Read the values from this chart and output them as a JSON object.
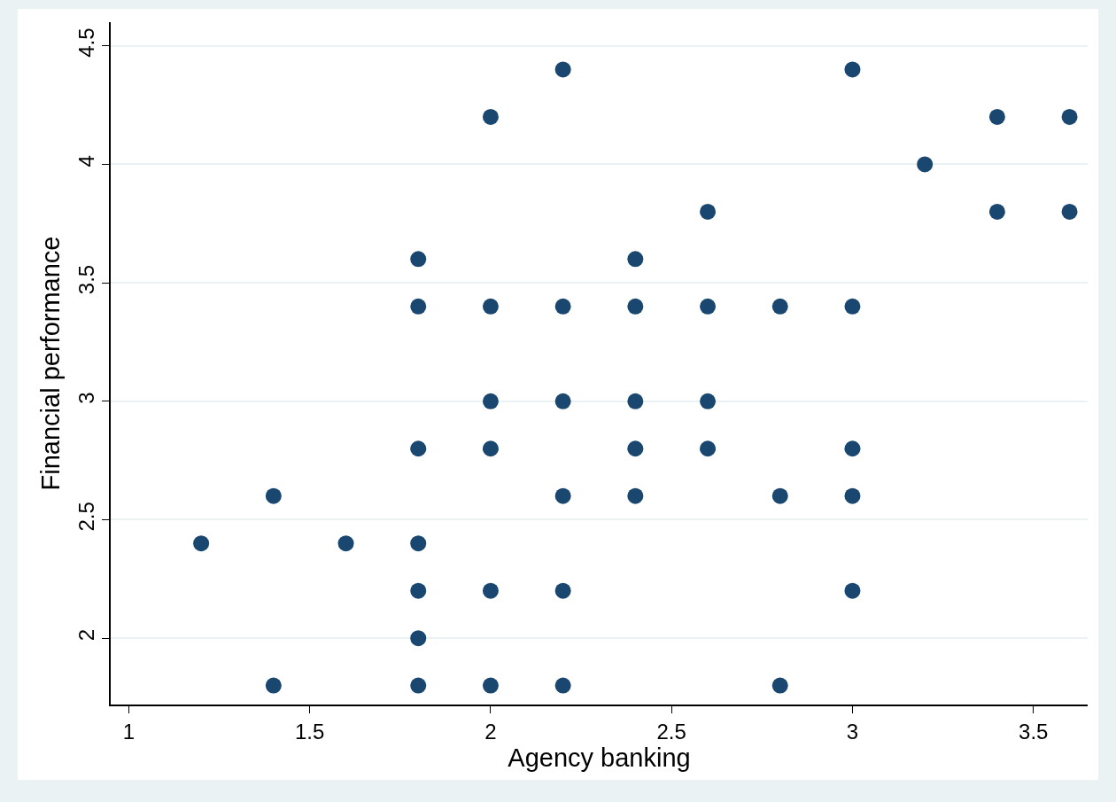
{
  "chart_data": {
    "type": "scatter",
    "xlabel": "Agency banking",
    "ylabel": "Financial performance",
    "x": [
      1.2,
      1.4,
      1.4,
      1.6,
      1.8,
      1.8,
      1.8,
      1.8,
      1.8,
      1.8,
      1.8,
      2.0,
      2.0,
      2.0,
      2.0,
      2.0,
      2.0,
      2.2,
      2.2,
      2.2,
      2.2,
      2.2,
      2.2,
      2.4,
      2.4,
      2.4,
      2.4,
      2.4,
      2.6,
      2.6,
      2.6,
      2.6,
      2.8,
      2.8,
      2.8,
      3.0,
      3.0,
      3.0,
      3.0,
      3.0,
      3.2,
      3.4,
      3.4,
      3.6,
      3.6
    ],
    "series": [
      {
        "color": "#1a476f",
        "values": [
          2.4,
          2.6,
          1.8,
          2.4,
          3.6,
          3.4,
          2.8,
          2.4,
          2.2,
          2.0,
          1.8,
          4.2,
          3.4,
          3.0,
          2.8,
          2.2,
          1.8,
          4.4,
          3.4,
          3.0,
          2.6,
          2.2,
          1.8,
          3.6,
          3.4,
          3.0,
          2.8,
          2.6,
          3.8,
          3.4,
          3.0,
          2.8,
          3.4,
          2.6,
          1.8,
          4.4,
          3.4,
          2.8,
          2.6,
          2.2,
          4.0,
          4.2,
          3.8,
          4.2,
          3.8
        ]
      }
    ],
    "xlim": [
      0.95,
      3.65
    ],
    "xticks": [
      1,
      1.5,
      2,
      2.5,
      3,
      3.5
    ],
    "ylim": [
      1.72,
      4.6
    ],
    "yticks": [
      2,
      2.5,
      3,
      3.5,
      4,
      4.5
    ],
    "grid": "y",
    "marker": "circle"
  }
}
